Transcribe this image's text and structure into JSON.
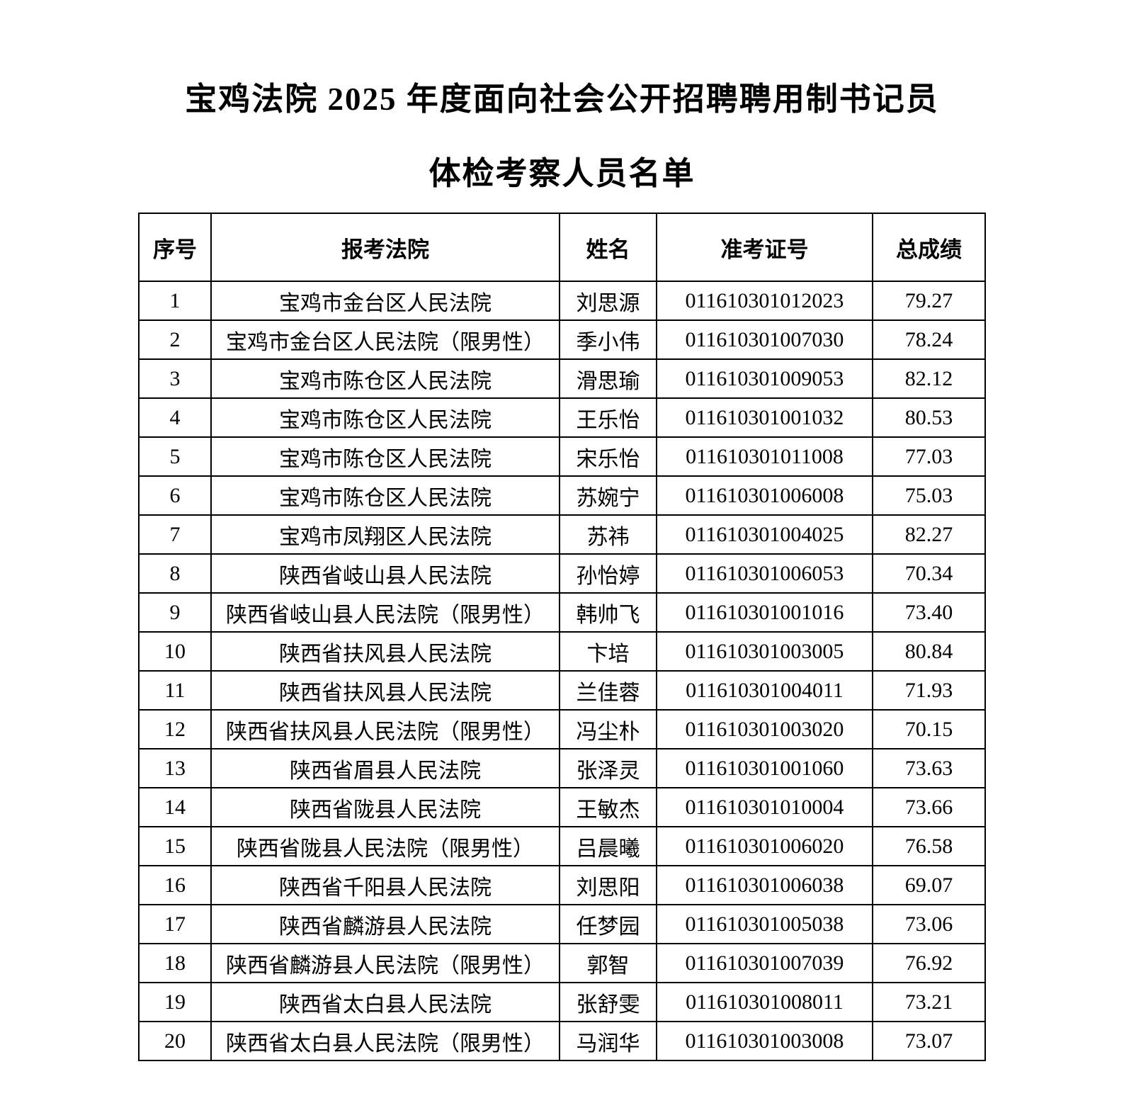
{
  "page": {
    "title_line1": "宝鸡法院 2025 年度面向社会公开招聘聘用制书记员",
    "title_line2": "体检考察人员名单"
  },
  "table": {
    "headers": [
      "序号",
      "报考法院",
      "姓名",
      "准考证号",
      "总成绩"
    ],
    "rows": [
      [
        "1",
        "宝鸡市金台区人民法院",
        "刘思源",
        "011610301012023",
        "79.27"
      ],
      [
        "2",
        "宝鸡市金台区人民法院（限男性）",
        "季小伟",
        "011610301007030",
        "78.24"
      ],
      [
        "3",
        "宝鸡市陈仓区人民法院",
        "滑思瑜",
        "011610301009053",
        "82.12"
      ],
      [
        "4",
        "宝鸡市陈仓区人民法院",
        "王乐怡",
        "011610301001032",
        "80.53"
      ],
      [
        "5",
        "宝鸡市陈仓区人民法院",
        "宋乐怡",
        "011610301011008",
        "77.03"
      ],
      [
        "6",
        "宝鸡市陈仓区人民法院",
        "苏婉宁",
        "011610301006008",
        "75.03"
      ],
      [
        "7",
        "宝鸡市凤翔区人民法院",
        "苏祎",
        "011610301004025",
        "82.27"
      ],
      [
        "8",
        "陕西省岐山县人民法院",
        "孙怡婷",
        "011610301006053",
        "70.34"
      ],
      [
        "9",
        "陕西省岐山县人民法院（限男性）",
        "韩帅飞",
        "011610301001016",
        "73.40"
      ],
      [
        "10",
        "陕西省扶风县人民法院",
        "卞培",
        "011610301003005",
        "80.84"
      ],
      [
        "11",
        "陕西省扶风县人民法院",
        "兰佳蓉",
        "011610301004011",
        "71.93"
      ],
      [
        "12",
        "陕西省扶风县人民法院（限男性）",
        "冯尘朴",
        "011610301003020",
        "70.15"
      ],
      [
        "13",
        "陕西省眉县人民法院",
        "张泽灵",
        "011610301001060",
        "73.63"
      ],
      [
        "14",
        "陕西省陇县人民法院",
        "王敏杰",
        "011610301010004",
        "73.66"
      ],
      [
        "15",
        "陕西省陇县人民法院（限男性）",
        "吕晨曦",
        "011610301006020",
        "76.58"
      ],
      [
        "16",
        "陕西省千阳县人民法院",
        "刘思阳",
        "011610301006038",
        "69.07"
      ],
      [
        "17",
        "陕西省麟游县人民法院",
        "任梦园",
        "011610301005038",
        "73.06"
      ],
      [
        "18",
        "陕西省麟游县人民法院（限男性）",
        "郭智",
        "011610301007039",
        "76.92"
      ],
      [
        "19",
        "陕西省太白县人民法院",
        "张舒雯",
        "011610301008011",
        "73.21"
      ],
      [
        "20",
        "陕西省太白县人民法院（限男性）",
        "马润华",
        "011610301003008",
        "73.07"
      ]
    ]
  }
}
